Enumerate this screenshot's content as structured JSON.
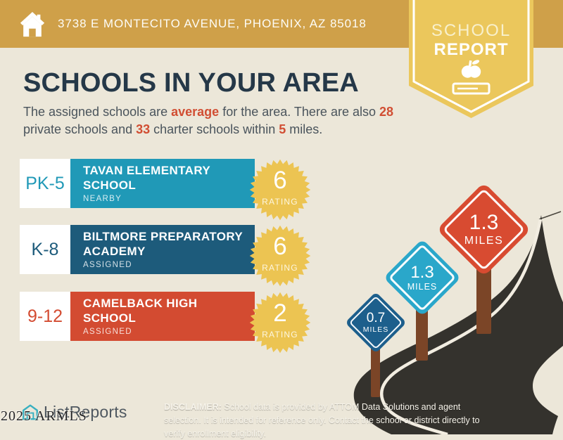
{
  "colors": {
    "background": "#ece7d9",
    "header_gold": "#cfa049",
    "badge_gold": "#ebc75c",
    "title_navy": "#253848",
    "accent_red": "#d14e33",
    "row_teal": "#2099b7",
    "row_blue": "#1d5b7b",
    "row_red": "#d34b31",
    "starburst_gold": "#ecc452",
    "road": "#34322d",
    "road_line": "#f2ede1",
    "post_brown": "#7b4527",
    "sign_blue": "#1d5f8c",
    "sign_teal": "#2aa7ca",
    "sign_red": "#d84b31"
  },
  "header": {
    "address": "3738 E MONTECITO AVENUE, PHOENIX, AZ 85018"
  },
  "badge": {
    "title_line1": "SCHOOL",
    "title_line2": "REPORT"
  },
  "main": {
    "title": "SCHOOLS IN YOUR AREA",
    "intro_segments": [
      {
        "text": "The assigned schools are ",
        "accent": false
      },
      {
        "text": "average",
        "accent": true
      },
      {
        "text": " for the area. There are also ",
        "accent": false
      },
      {
        "text": "28",
        "accent": true
      },
      {
        "text": " private schools and ",
        "accent": false
      },
      {
        "text": "33",
        "accent": true
      },
      {
        "text": " charter schools within ",
        "accent": false
      },
      {
        "text": "5",
        "accent": true
      },
      {
        "text": " miles.",
        "accent": false
      }
    ]
  },
  "schools": [
    {
      "grades": "PK-5",
      "name": "TAVAN ELEMENTARY\nSCHOOL",
      "status": "NEARBY",
      "rating": "6",
      "rating_label": "RATING",
      "color": "#2099b7"
    },
    {
      "grades": "K-8",
      "name": "BILTMORE PREPARATORY\nACADEMY",
      "status": "ASSIGNED",
      "rating": "6",
      "rating_label": "RATING",
      "color": "#1d5b7b"
    },
    {
      "grades": "9-12",
      "name": "CAMELBACK HIGH\nSCHOOL",
      "status": "ASSIGNED",
      "rating": "2",
      "rating_label": "RATING",
      "color": "#d34b31"
    }
  ],
  "signs": [
    {
      "distance": "0.7",
      "unit": "MILES",
      "color": "#1d5f8c"
    },
    {
      "distance": "1.3",
      "unit": "MILES",
      "color": "#2aa7ca"
    },
    {
      "distance": "1.3",
      "unit": "MILES",
      "color": "#d84b31"
    }
  ],
  "footer": {
    "logo_text": "ListReports",
    "watermark": "2025 ARMLS",
    "disclaimer_label": "DISCLAIMER:",
    "disclaimer_rest": " School data is provided by ATTOM Data Solutions and agent selection. It is intended for reference only. Contact the school or district directly to verify enrollment eligibility."
  }
}
